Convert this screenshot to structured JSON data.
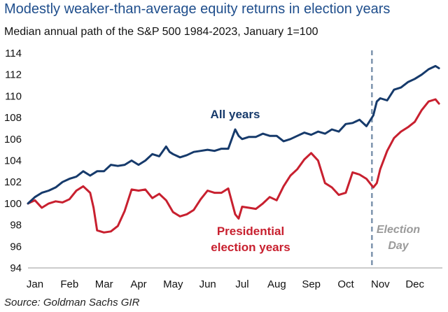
{
  "colors": {
    "title": "#1f4e8c",
    "all_years": "#163a6b",
    "election_years": "#c8202f",
    "election_day": "#7d94ad",
    "election_day_label": "#9a9a9a",
    "axis": "#999999"
  },
  "chart_data": {
    "type": "line",
    "title": "Modestly weaker-than-average equity returns in election years",
    "subtitle": "Median annual path of the S&P 500 1984-2023, January 1=100",
    "source": "Source: Goldman Sachs GIR",
    "xlabel": "",
    "ylabel": "",
    "x_ticks": [
      "Jan",
      "Feb",
      "Mar",
      "Apr",
      "May",
      "Jun",
      "Jul",
      "Aug",
      "Sep",
      "Oct",
      "Nov",
      "Dec"
    ],
    "xlim": [
      0,
      12
    ],
    "ylim": [
      94,
      114
    ],
    "y_ticks": [
      94,
      96,
      98,
      100,
      102,
      104,
      106,
      108,
      110,
      112,
      114
    ],
    "y_tick_labels": [
      "94",
      "96",
      "98",
      "100",
      "102",
      "104",
      "106",
      "108",
      "110",
      "112",
      "114"
    ],
    "grid": false,
    "series": [
      {
        "name": "All years",
        "label": "All years",
        "x": [
          0,
          0.2,
          0.4,
          0.6,
          0.8,
          1.0,
          1.2,
          1.4,
          1.6,
          1.8,
          2.0,
          2.2,
          2.4,
          2.6,
          2.8,
          3.0,
          3.2,
          3.4,
          3.6,
          3.8,
          4.0,
          4.1,
          4.2,
          4.4,
          4.6,
          4.8,
          5.0,
          5.2,
          5.4,
          5.6,
          5.8,
          6.0,
          6.1,
          6.2,
          6.4,
          6.6,
          6.8,
          7.0,
          7.2,
          7.4,
          7.6,
          7.8,
          8.0,
          8.2,
          8.4,
          8.6,
          8.8,
          9.0,
          9.2,
          9.4,
          9.6,
          9.8,
          10.0,
          10.1,
          10.2,
          10.4,
          10.6,
          10.8,
          11.0,
          11.2,
          11.4,
          11.6,
          11.8,
          11.9
        ],
        "values": [
          100.0,
          100.6,
          101.0,
          101.2,
          101.5,
          102.0,
          102.3,
          102.5,
          103.0,
          102.6,
          103.0,
          103.0,
          103.6,
          103.5,
          103.6,
          104.0,
          103.6,
          104.0,
          104.6,
          104.4,
          105.3,
          104.8,
          104.6,
          104.3,
          104.5,
          104.8,
          104.9,
          105.0,
          104.9,
          105.1,
          105.1,
          106.9,
          106.3,
          106.0,
          106.2,
          106.2,
          106.5,
          106.3,
          106.3,
          105.8,
          106.0,
          106.3,
          106.6,
          106.4,
          106.7,
          106.5,
          106.9,
          106.7,
          107.4,
          107.5,
          107.8,
          107.2,
          108.2,
          109.5,
          109.8,
          109.6,
          110.6,
          110.8,
          111.3,
          111.6,
          112.0,
          112.5,
          112.8,
          112.6
        ],
        "label_position": "upper-middle"
      },
      {
        "name": "Presidential election years",
        "label": "Presidential election years",
        "x": [
          0,
          0.2,
          0.4,
          0.6,
          0.8,
          1.0,
          1.2,
          1.4,
          1.6,
          1.8,
          1.9,
          2.0,
          2.2,
          2.4,
          2.6,
          2.8,
          3.0,
          3.2,
          3.4,
          3.6,
          3.8,
          4.0,
          4.2,
          4.4,
          4.6,
          4.8,
          5.0,
          5.2,
          5.4,
          5.6,
          5.8,
          6.0,
          6.1,
          6.2,
          6.4,
          6.6,
          6.8,
          7.0,
          7.2,
          7.4,
          7.6,
          7.8,
          8.0,
          8.2,
          8.4,
          8.6,
          8.8,
          9.0,
          9.2,
          9.4,
          9.6,
          9.8,
          10.0,
          10.1,
          10.2,
          10.4,
          10.6,
          10.8,
          11.0,
          11.2,
          11.4,
          11.6,
          11.8,
          11.9
        ],
        "values": [
          100.0,
          100.3,
          99.6,
          100.0,
          100.2,
          100.1,
          100.4,
          101.2,
          101.6,
          101.0,
          99.6,
          97.5,
          97.3,
          97.4,
          97.9,
          99.3,
          101.3,
          101.2,
          101.3,
          100.5,
          100.9,
          100.3,
          99.2,
          98.8,
          99.0,
          99.4,
          100.4,
          101.2,
          101.0,
          101.0,
          101.4,
          99.0,
          98.6,
          99.7,
          99.6,
          99.5,
          100.0,
          100.6,
          100.3,
          101.6,
          102.6,
          103.2,
          104.1,
          104.7,
          104.0,
          101.9,
          101.5,
          100.8,
          101.0,
          102.9,
          102.7,
          102.3,
          101.5,
          101.9,
          103.2,
          104.9,
          106.1,
          106.7,
          107.1,
          107.6,
          108.7,
          109.5,
          109.7,
          109.3
        ],
        "label_position": "lower-middle"
      }
    ],
    "annotations": [
      {
        "name": "election-day",
        "type": "vertical-dashed-line",
        "x": 10.0,
        "text_line1": "Election",
        "text_line2": "Day"
      }
    ]
  }
}
